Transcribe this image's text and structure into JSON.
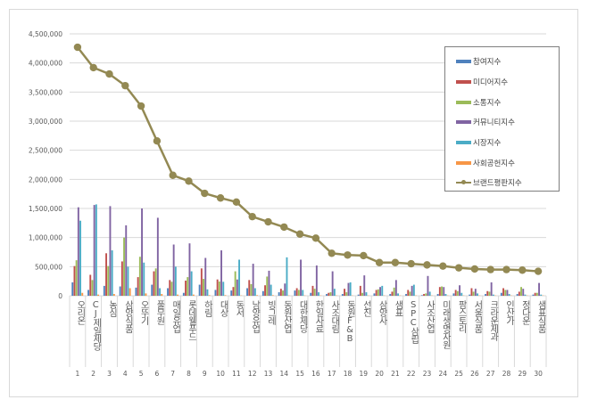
{
  "chart_data": {
    "type": "bar",
    "title": "",
    "xlabel": "",
    "ylabel": "",
    "ylim": [
      0,
      4500000
    ],
    "yticks": [
      "0",
      "500,000",
      "1,000,000",
      "1,500,000",
      "2,000,000",
      "2,500,000",
      "3,000,000",
      "3,500,000",
      "4,000,000",
      "4,500,000"
    ],
    "grid": true,
    "legend_position": "top-right",
    "categories": [
      "오리온",
      "CJ제일제당",
      "농심",
      "삼양식품",
      "오뚜기",
      "풀무원",
      "매일유업",
      "롯데웰푸드",
      "하림",
      "대상",
      "동서",
      "남양유업",
      "빙그레",
      "동원산업",
      "대한제당",
      "한일사료",
      "사조대림",
      "동원F&B",
      "선진",
      "삼양사",
      "샘표",
      "SPC삼립",
      "사조산업",
      "미래생명자원",
      "팜스토리",
      "서울식품",
      "크라운제과",
      "인산가",
      "정다운",
      "샘표식품"
    ],
    "ranks": [
      "1",
      "2",
      "3",
      "4",
      "5",
      "6",
      "7",
      "8",
      "9",
      "10",
      "11",
      "12",
      "13",
      "14",
      "15",
      "16",
      "17",
      "18",
      "19",
      "20",
      "21",
      "22",
      "23",
      "24",
      "25",
      "26",
      "27",
      "28",
      "29",
      "30"
    ],
    "series": [
      {
        "name": "참여지수",
        "type": "bar",
        "color": "#4f81bd",
        "values": [
          230000,
          100000,
          170000,
          160000,
          140000,
          190000,
          130000,
          50000,
          190000,
          100000,
          90000,
          130000,
          80000,
          60000,
          90000,
          50000,
          30000,
          30000,
          20000,
          40000,
          30000,
          30000,
          10000,
          30000,
          40000,
          20000,
          30000,
          50000,
          30000,
          20000
        ]
      },
      {
        "name": "미디어지수",
        "type": "bar",
        "color": "#c0504d",
        "values": [
          510000,
          360000,
          730000,
          590000,
          320000,
          420000,
          270000,
          260000,
          470000,
          280000,
          150000,
          270000,
          180000,
          120000,
          130000,
          170000,
          50000,
          120000,
          170000,
          100000,
          70000,
          100000,
          30000,
          150000,
          100000,
          130000,
          80000,
          130000,
          70000,
          50000
        ]
      },
      {
        "name": "소통지수",
        "type": "bar",
        "color": "#9bbb59",
        "values": [
          610000,
          270000,
          510000,
          1000000,
          670000,
          470000,
          240000,
          320000,
          290000,
          245000,
          420000,
          200000,
          330000,
          90000,
          100000,
          120000,
          60000,
          60000,
          50000,
          110000,
          140000,
          70000,
          40000,
          160000,
          80000,
          70000,
          70000,
          100000,
          150000,
          50000
        ]
      },
      {
        "name": "커뮤니티지수",
        "type": "bar",
        "color": "#8064a2",
        "values": [
          1520000,
          1560000,
          1540000,
          1210000,
          1500000,
          1340000,
          880000,
          900000,
          650000,
          780000,
          280000,
          550000,
          430000,
          210000,
          620000,
          520000,
          420000,
          220000,
          350000,
          150000,
          270000,
          170000,
          340000,
          150000,
          180000,
          120000,
          230000,
          100000,
          120000,
          220000
        ]
      },
      {
        "name": "시장지수",
        "type": "bar",
        "color": "#4bacc6",
        "values": [
          1290000,
          1570000,
          780000,
          500000,
          570000,
          130000,
          500000,
          420000,
          110000,
          240000,
          620000,
          130000,
          190000,
          660000,
          100000,
          60000,
          120000,
          230000,
          60000,
          170000,
          40000,
          190000,
          70000,
          30000,
          50000,
          40000,
          20000,
          30000,
          20000,
          20000
        ]
      },
      {
        "name": "사회공헌지수",
        "type": "bar",
        "color": "#f79646",
        "values": [
          50000,
          20000,
          30000,
          130000,
          40000,
          30000,
          20000,
          20000,
          10000,
          10000,
          5000,
          10000,
          10000,
          5000,
          5000,
          5000,
          5000,
          5000,
          5000,
          5000,
          5000,
          5000,
          5000,
          5000,
          5000,
          5000,
          5000,
          5000,
          5000,
          5000
        ]
      },
      {
        "name": "브랜드평판지수",
        "type": "line",
        "color": "#938953",
        "values": [
          4270000,
          3920000,
          3810000,
          3610000,
          3260000,
          2660000,
          2070000,
          1970000,
          1760000,
          1680000,
          1610000,
          1360000,
          1270000,
          1180000,
          1060000,
          990000,
          730000,
          700000,
          690000,
          570000,
          570000,
          550000,
          530000,
          510000,
          480000,
          460000,
          450000,
          450000,
          440000,
          420000
        ]
      }
    ]
  }
}
